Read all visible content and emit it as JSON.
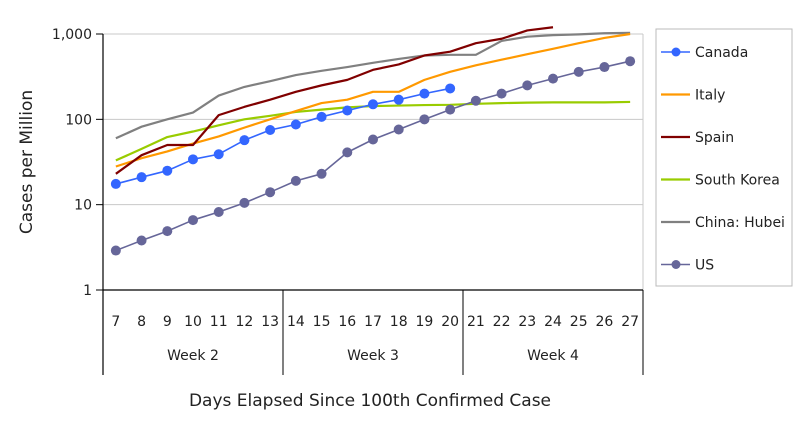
{
  "chart_data": {
    "type": "line",
    "title": "",
    "xlabel": "Days Elapsed Since 100th Confirmed Case",
    "ylabel": "Cases per Million",
    "yscale": "log",
    "ylim": [
      1,
      1000
    ],
    "yticks": [
      {
        "v": 1,
        "label": "1"
      },
      {
        "v": 10,
        "label": "10"
      },
      {
        "v": 100,
        "label": "100"
      },
      {
        "v": 1000,
        "label": "1,000"
      }
    ],
    "grid": true,
    "legend_position": "right",
    "x": [
      "7",
      "8",
      "9",
      "10",
      "11",
      "12",
      "13",
      "14",
      "15",
      "16",
      "17",
      "18",
      "19",
      "20",
      "21",
      "22",
      "23",
      "24",
      "25",
      "26",
      "27"
    ],
    "groups": [
      {
        "label": "Week 2",
        "from": 0,
        "to": 6
      },
      {
        "label": "Week 3",
        "from": 7,
        "to": 13
      },
      {
        "label": "Week 4",
        "from": 14,
        "to": 20
      }
    ],
    "series": [
      {
        "name": "Canada",
        "color": "#3366ff",
        "marker": true,
        "values": [
          17.5,
          21,
          25,
          34,
          39,
          57,
          75,
          87,
          107,
          127,
          150,
          170,
          200,
          230,
          null,
          null,
          null,
          null,
          null,
          null,
          null
        ]
      },
      {
        "name": "Italy",
        "color": "#ff9900",
        "marker": false,
        "values": [
          28,
          35,
          42,
          52,
          63,
          80,
          100,
          125,
          155,
          170,
          210,
          210,
          290,
          360,
          430,
          500,
          580,
          670,
          780,
          900,
          1000
        ]
      },
      {
        "name": "Spain",
        "color": "#800000",
        "marker": false,
        "values": [
          23,
          38,
          50,
          50,
          112,
          140,
          170,
          210,
          250,
          290,
          380,
          440,
          560,
          620,
          780,
          880,
          1100,
          1200,
          null,
          null,
          null
        ]
      },
      {
        "name": "South Korea",
        "color": "#99cc00",
        "marker": false,
        "values": [
          33,
          45,
          62,
          72,
          85,
          100,
          110,
          122,
          130,
          138,
          143,
          145,
          147,
          148,
          152,
          155,
          157,
          158,
          158,
          158,
          160
        ]
      },
      {
        "name": "China: Hubei",
        "color": "#808080",
        "marker": false,
        "values": [
          60,
          82,
          100,
          120,
          190,
          240,
          280,
          330,
          370,
          410,
          460,
          510,
          560,
          570,
          570,
          830,
          930,
          970,
          990,
          1020,
          1030
        ]
      },
      {
        "name": "US",
        "color": "#666699",
        "marker": true,
        "values": [
          2.9,
          3.8,
          4.9,
          6.6,
          8.2,
          10.5,
          14,
          19,
          23,
          41,
          58,
          76,
          100,
          130,
          165,
          200,
          250,
          300,
          360,
          410,
          480
        ]
      }
    ]
  }
}
